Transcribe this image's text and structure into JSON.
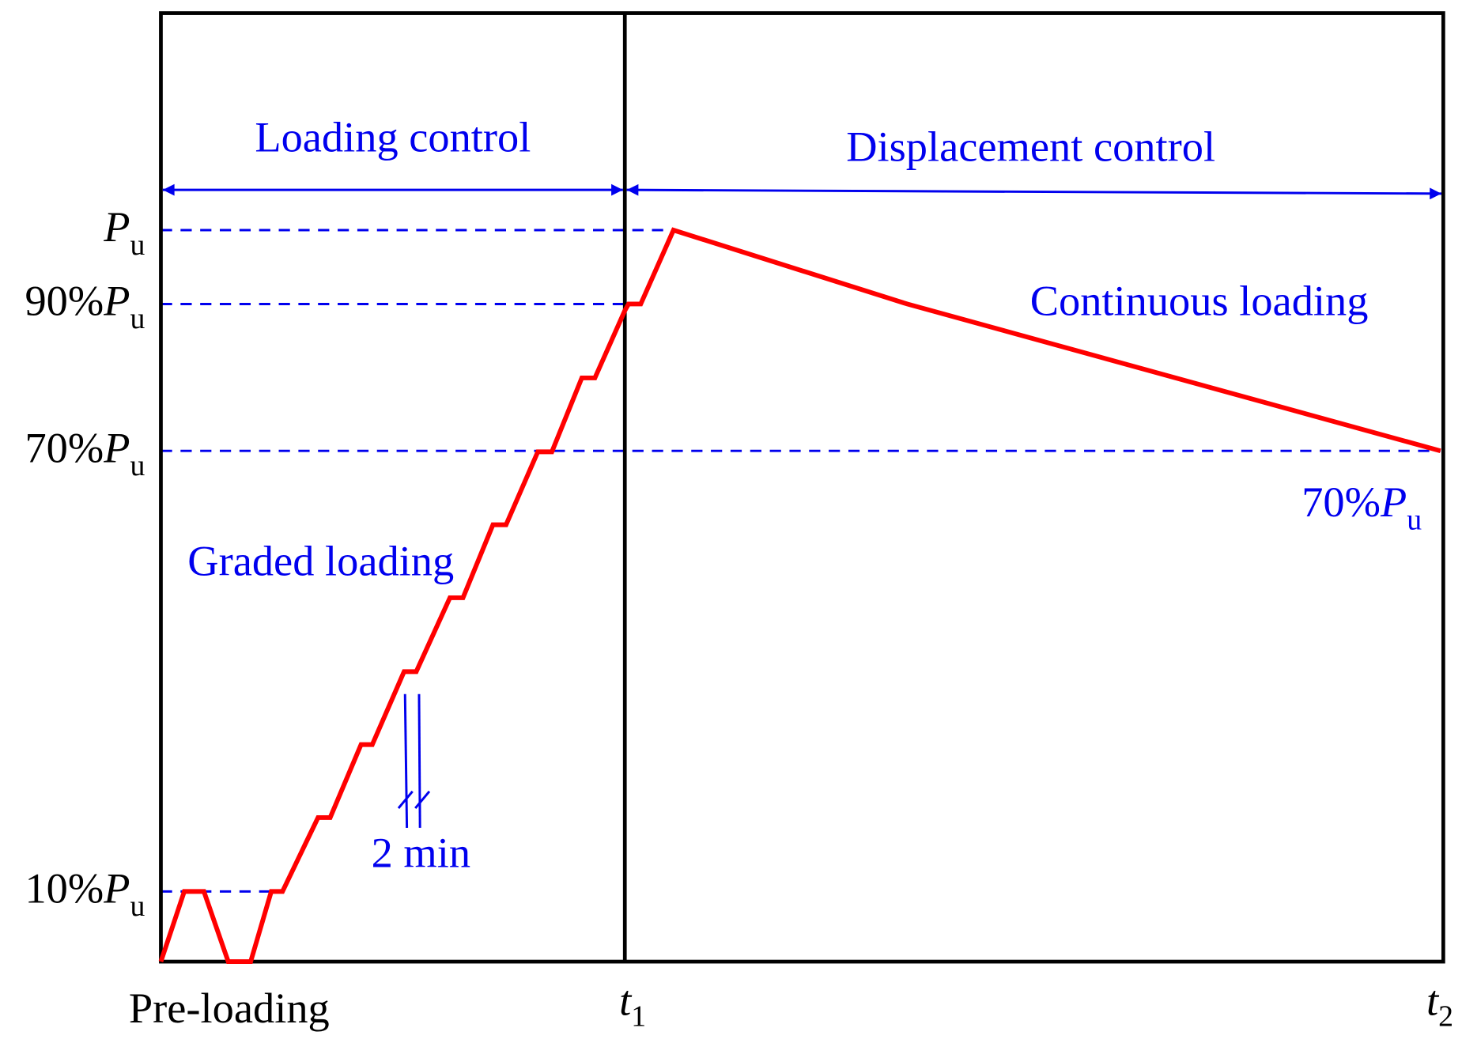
{
  "regions": [
    {
      "label": "Loading control"
    },
    {
      "label": "Displacement control"
    }
  ],
  "levels": [
    {
      "symbol": "P",
      "subscript": "u"
    },
    {
      "prefix": "90%",
      "symbol": "P",
      "subscript": "u"
    },
    {
      "prefix": "70%",
      "symbol": "P",
      "subscript": "u"
    },
    {
      "prefix": "10%",
      "symbol": "P",
      "subscript": "u"
    }
  ],
  "times": [
    {
      "symbol": "t",
      "subscript": "1"
    },
    {
      "symbol": "t",
      "subscript": "2"
    }
  ],
  "annotations": {
    "continuous": "Continuous loading",
    "graded": "Graded loading",
    "interval": "2 min",
    "preloading": "Pre-loading",
    "end_level": {
      "prefix": "70%",
      "symbol": "P",
      "subscript": "u"
    }
  }
}
